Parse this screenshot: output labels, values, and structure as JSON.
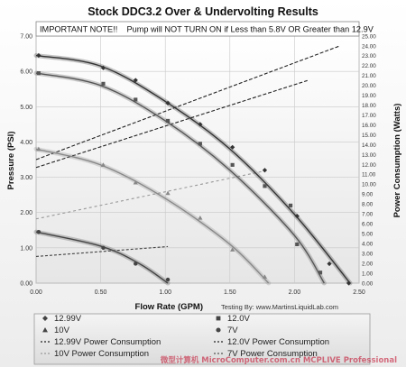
{
  "chart_data": {
    "type": "line",
    "title": "Stock DDC3.2 Over & Undervolting Results",
    "note": "IMPORTANT NOTE!!    Pump will NOT TURN ON if Less than 5.8V OR Greater than 12.9V",
    "xlabel": "Flow Rate (GPM)",
    "ylabel": "Pressure (PSI)",
    "y2label": "Power Consumption (Watts)",
    "credit": "Testing By:  www.MartinsLiquidLab.com",
    "watermark": "微型计算机 MicroComputer.com.cn  MCPLIVE Professional",
    "xlim": [
      0,
      2.5
    ],
    "ylim": [
      0,
      7
    ],
    "y2lim": [
      0,
      25
    ],
    "x_ticks": [
      "0.00",
      "0.50",
      "1.00",
      "1.50",
      "2.00",
      "2.50"
    ],
    "y_ticks": [
      "0.00",
      "1.00",
      "2.00",
      "3.00",
      "4.00",
      "5.00",
      "6.00",
      "7.00"
    ],
    "y2_ticks": [
      "0.00",
      "1.00",
      "2.00",
      "3.00",
      "4.00",
      "5.00",
      "6.00",
      "7.00",
      "8.00",
      "9.00",
      "10.00",
      "11.00",
      "12.00",
      "13.00",
      "14.00",
      "15.00",
      "16.00",
      "17.00",
      "18.00",
      "19.00",
      "20.00",
      "21.00",
      "22.00",
      "23.00",
      "24.00",
      "25.00"
    ],
    "grid": true,
    "legend_position": "bottom",
    "pressure_series": [
      {
        "name": "12.99V",
        "marker": "diamond",
        "color": "#333333",
        "points": [
          [
            0.02,
            6.45
          ],
          [
            0.52,
            6.1
          ],
          [
            0.77,
            5.75
          ],
          [
            1.02,
            5.1
          ],
          [
            1.27,
            4.5
          ],
          [
            1.52,
            3.85
          ],
          [
            1.77,
            3.2
          ],
          [
            2.02,
            1.9
          ],
          [
            2.27,
            0.55
          ],
          [
            2.42,
            0.0
          ]
        ],
        "curve": [
          [
            0.0,
            6.45
          ],
          [
            0.5,
            6.15
          ],
          [
            1.0,
            5.15
          ],
          [
            1.5,
            3.8
          ],
          [
            2.0,
            1.95
          ],
          [
            2.43,
            0.0
          ]
        ]
      },
      {
        "name": "12.0V",
        "marker": "square",
        "color": "#555555",
        "points": [
          [
            0.02,
            5.95
          ],
          [
            0.52,
            5.65
          ],
          [
            0.77,
            5.2
          ],
          [
            1.02,
            4.6
          ],
          [
            1.27,
            3.95
          ],
          [
            1.52,
            3.35
          ],
          [
            1.77,
            2.75
          ],
          [
            1.97,
            2.2
          ],
          [
            2.02,
            1.1
          ],
          [
            2.2,
            0.3
          ]
        ],
        "curve": [
          [
            0.0,
            5.95
          ],
          [
            0.5,
            5.6
          ],
          [
            1.0,
            4.6
          ],
          [
            1.5,
            3.2
          ],
          [
            2.0,
            1.35
          ],
          [
            2.23,
            0.0
          ]
        ]
      },
      {
        "name": "10V",
        "marker": "triangle",
        "color": "#888888",
        "points": [
          [
            0.02,
            3.8
          ],
          [
            0.52,
            3.35
          ],
          [
            0.77,
            2.85
          ],
          [
            1.02,
            2.55
          ],
          [
            1.27,
            1.85
          ],
          [
            1.52,
            0.95
          ],
          [
            1.77,
            0.18
          ]
        ],
        "curve": [
          [
            0.0,
            3.8
          ],
          [
            0.5,
            3.35
          ],
          [
            1.0,
            2.4
          ],
          [
            1.5,
            1.1
          ],
          [
            1.8,
            0.0
          ]
        ]
      },
      {
        "name": "7V",
        "marker": "circle",
        "color": "#444444",
        "points": [
          [
            0.02,
            1.45
          ],
          [
            0.52,
            1.0
          ],
          [
            0.77,
            0.55
          ],
          [
            1.02,
            0.1
          ]
        ],
        "curve": [
          [
            0.0,
            1.45
          ],
          [
            0.5,
            1.05
          ],
          [
            0.8,
            0.55
          ],
          [
            1.02,
            0.0
          ]
        ]
      }
    ],
    "power_series": [
      {
        "name": "12.99V Power Consumption",
        "color": "#222222",
        "dash": "4,2",
        "points": [
          [
            0.0,
            12.5
          ],
          [
            2.35,
            24.0
          ]
        ]
      },
      {
        "name": "12.0V Power Consumption",
        "color": "#222222",
        "dash": "4,2",
        "points": [
          [
            0.0,
            11.7
          ],
          [
            2.1,
            20.5
          ]
        ]
      },
      {
        "name": "10V Power Consumption",
        "color": "#999999",
        "dash": "3,3",
        "points": [
          [
            0.0,
            6.5
          ],
          [
            1.75,
            11.3
          ]
        ]
      },
      {
        "name": "7V Power Consumption",
        "color": "#444444",
        "dash": "3,2",
        "points": [
          [
            0.0,
            2.7
          ],
          [
            1.02,
            3.7
          ]
        ]
      }
    ],
    "legend": [
      {
        "label": "12.99V",
        "marker": "diamond"
      },
      {
        "label": "12.0V",
        "marker": "square"
      },
      {
        "label": "10V",
        "marker": "triangle"
      },
      {
        "label": "7V",
        "marker": "circle"
      },
      {
        "label": "12.99V Power Consumption",
        "marker": "dash-dark"
      },
      {
        "label": "12.0V Power Consumption",
        "marker": "dash-dark"
      },
      {
        "label": "10V Power Consumption",
        "marker": "dash-light"
      },
      {
        "label": "7V Power Consumption",
        "marker": "dash-mid"
      }
    ]
  }
}
